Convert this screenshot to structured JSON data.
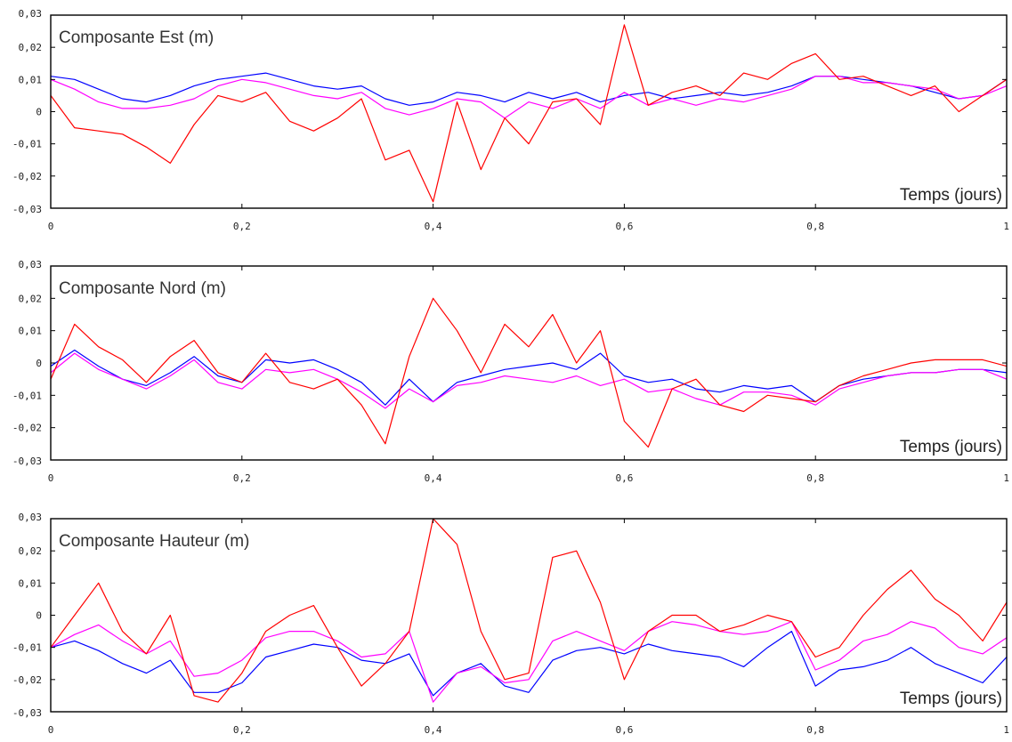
{
  "chart_data": [
    {
      "type": "line",
      "title": "Composante Est (m)",
      "xlabel": "Temps (jours)",
      "ylabel": "",
      "xlim": [
        0,
        1
      ],
      "ylim": [
        -0.03,
        0.03
      ],
      "xticks": [
        "0",
        "0,2",
        "0,4",
        "0,6",
        "0,8",
        "1"
      ],
      "yticks": [
        "0,03",
        "0,02",
        "0,01",
        "0",
        "-0,01",
        "-0,02",
        "-0,03"
      ],
      "grid": false,
      "x": [
        0,
        0.025,
        0.05,
        0.075,
        0.1,
        0.125,
        0.15,
        0.175,
        0.2,
        0.225,
        0.25,
        0.275,
        0.3,
        0.325,
        0.35,
        0.375,
        0.4,
        0.425,
        0.45,
        0.475,
        0.5,
        0.525,
        0.55,
        0.575,
        0.6,
        0.625,
        0.65,
        0.675,
        0.7,
        0.725,
        0.75,
        0.775,
        0.8,
        0.825,
        0.85,
        0.875,
        0.9,
        0.925,
        0.95,
        0.975,
        1
      ],
      "series": [
        {
          "color": "#0000ff",
          "values": [
            0.011,
            0.01,
            0.007,
            0.004,
            0.003,
            0.005,
            0.008,
            0.01,
            0.011,
            0.012,
            0.01,
            0.008,
            0.007,
            0.008,
            0.004,
            0.002,
            0.003,
            0.006,
            0.005,
            0.003,
            0.006,
            0.004,
            0.006,
            0.003,
            0.005,
            0.006,
            0.004,
            0.005,
            0.006,
            0.005,
            0.006,
            0.008,
            0.011,
            0.011,
            0.01,
            0.009,
            0.008,
            0.006,
            0.004,
            0.005,
            0.01
          ]
        },
        {
          "color": "#ff00ff",
          "values": [
            0.01,
            0.007,
            0.003,
            0.001,
            0.001,
            0.002,
            0.004,
            0.008,
            0.01,
            0.009,
            0.007,
            0.005,
            0.004,
            0.006,
            0.001,
            -0.001,
            0.001,
            0.004,
            0.003,
            -0.002,
            0.003,
            0.001,
            0.004,
            0.001,
            0.006,
            0.002,
            0.004,
            0.002,
            0.004,
            0.003,
            0.005,
            0.007,
            0.011,
            0.011,
            0.009,
            0.009,
            0.008,
            0.007,
            0.004,
            0.005,
            0.008
          ]
        },
        {
          "color": "#ff0000",
          "values": [
            0.005,
            -0.005,
            -0.006,
            -0.007,
            -0.011,
            -0.016,
            -0.004,
            0.005,
            0.003,
            0.006,
            -0.003,
            -0.006,
            -0.002,
            0.004,
            -0.015,
            -0.012,
            -0.028,
            0.003,
            -0.018,
            -0.002,
            -0.01,
            0.003,
            0.004,
            -0.004,
            0.027,
            0.002,
            0.006,
            0.008,
            0.005,
            0.012,
            0.01,
            0.015,
            0.018,
            0.01,
            0.011,
            0.008,
            0.005,
            0.008,
            0.0,
            0.005,
            0.01
          ]
        }
      ]
    },
    {
      "type": "line",
      "title": "Composante Nord (m)",
      "xlabel": "Temps (jours)",
      "ylabel": "",
      "xlim": [
        0,
        1
      ],
      "ylim": [
        -0.03,
        0.03
      ],
      "xticks": [
        "0",
        "0,2",
        "0,4",
        "0,6",
        "0,8",
        "1"
      ],
      "yticks": [
        "0,03",
        "0,02",
        "0,01",
        "0",
        "-0,01",
        "-0,02",
        "-0,03"
      ],
      "grid": false,
      "x": [
        0,
        0.025,
        0.05,
        0.075,
        0.1,
        0.125,
        0.15,
        0.175,
        0.2,
        0.225,
        0.25,
        0.275,
        0.3,
        0.325,
        0.35,
        0.375,
        0.4,
        0.425,
        0.45,
        0.475,
        0.5,
        0.525,
        0.55,
        0.575,
        0.6,
        0.625,
        0.65,
        0.675,
        0.7,
        0.725,
        0.75,
        0.775,
        0.8,
        0.825,
        0.85,
        0.875,
        0.9,
        0.925,
        0.95,
        0.975,
        1
      ],
      "series": [
        {
          "color": "#0000ff",
          "values": [
            -0.001,
            0.004,
            -0.001,
            -0.005,
            -0.007,
            -0.003,
            0.002,
            -0.004,
            -0.006,
            0.001,
            0.0,
            0.001,
            -0.002,
            -0.006,
            -0.013,
            -0.005,
            -0.012,
            -0.006,
            -0.004,
            -0.002,
            -0.001,
            0.0,
            -0.002,
            0.003,
            -0.004,
            -0.006,
            -0.005,
            -0.008,
            -0.009,
            -0.007,
            -0.008,
            -0.007,
            -0.012,
            -0.007,
            -0.005,
            -0.004,
            -0.003,
            -0.003,
            -0.002,
            -0.002,
            -0.003
          ]
        },
        {
          "color": "#ff00ff",
          "values": [
            -0.003,
            0.003,
            -0.002,
            -0.005,
            -0.008,
            -0.004,
            0.001,
            -0.006,
            -0.008,
            -0.002,
            -0.003,
            -0.002,
            -0.005,
            -0.009,
            -0.014,
            -0.008,
            -0.012,
            -0.007,
            -0.006,
            -0.004,
            -0.005,
            -0.006,
            -0.004,
            -0.007,
            -0.005,
            -0.009,
            -0.008,
            -0.011,
            -0.013,
            -0.009,
            -0.009,
            -0.01,
            -0.013,
            -0.008,
            -0.006,
            -0.004,
            -0.003,
            -0.003,
            -0.002,
            -0.002,
            -0.005
          ]
        },
        {
          "color": "#ff0000",
          "values": [
            -0.005,
            0.012,
            0.005,
            0.001,
            -0.006,
            0.002,
            0.007,
            -0.003,
            -0.006,
            0.003,
            -0.006,
            -0.008,
            -0.005,
            -0.013,
            -0.025,
            0.002,
            0.02,
            0.01,
            -0.003,
            0.012,
            0.005,
            0.015,
            0.0,
            0.01,
            -0.018,
            -0.026,
            -0.008,
            -0.005,
            -0.013,
            -0.015,
            -0.01,
            -0.011,
            -0.012,
            -0.007,
            -0.004,
            -0.002,
            0.0,
            0.001,
            0.001,
            0.001,
            -0.001
          ]
        }
      ]
    },
    {
      "type": "line",
      "title": "Composante Hauteur (m)",
      "xlabel": "Temps (jours)",
      "ylabel": "",
      "xlim": [
        0,
        1
      ],
      "ylim": [
        -0.03,
        0.03
      ],
      "xticks": [
        "0",
        "0,2",
        "0,4",
        "0,6",
        "0,8",
        "1"
      ],
      "yticks": [
        "0,03",
        "0,02",
        "0,01",
        "0",
        "-0,01",
        "-0,02",
        "-0,03"
      ],
      "grid": false,
      "x": [
        0,
        0.025,
        0.05,
        0.075,
        0.1,
        0.125,
        0.15,
        0.175,
        0.2,
        0.225,
        0.25,
        0.275,
        0.3,
        0.325,
        0.35,
        0.375,
        0.4,
        0.425,
        0.45,
        0.475,
        0.5,
        0.525,
        0.55,
        0.575,
        0.6,
        0.625,
        0.65,
        0.675,
        0.7,
        0.725,
        0.75,
        0.775,
        0.8,
        0.825,
        0.85,
        0.875,
        0.9,
        0.925,
        0.95,
        0.975,
        1
      ],
      "series": [
        {
          "color": "#0000ff",
          "values": [
            -0.01,
            -0.008,
            -0.011,
            -0.015,
            -0.018,
            -0.014,
            -0.024,
            -0.024,
            -0.021,
            -0.013,
            -0.011,
            -0.009,
            -0.01,
            -0.014,
            -0.015,
            -0.012,
            -0.025,
            -0.018,
            -0.015,
            -0.022,
            -0.024,
            -0.014,
            -0.011,
            -0.01,
            -0.012,
            -0.009,
            -0.011,
            -0.012,
            -0.013,
            -0.016,
            -0.01,
            -0.005,
            -0.022,
            -0.017,
            -0.016,
            -0.014,
            -0.01,
            -0.015,
            -0.018,
            -0.021,
            -0.013
          ]
        },
        {
          "color": "#ff00ff",
          "values": [
            -0.01,
            -0.006,
            -0.003,
            -0.008,
            -0.012,
            -0.008,
            -0.019,
            -0.018,
            -0.014,
            -0.007,
            -0.005,
            -0.005,
            -0.008,
            -0.013,
            -0.012,
            -0.005,
            -0.027,
            -0.018,
            -0.016,
            -0.021,
            -0.02,
            -0.008,
            -0.005,
            -0.008,
            -0.011,
            -0.005,
            -0.002,
            -0.003,
            -0.005,
            -0.006,
            -0.005,
            -0.002,
            -0.017,
            -0.014,
            -0.008,
            -0.006,
            -0.002,
            -0.004,
            -0.01,
            -0.012,
            -0.007
          ]
        },
        {
          "color": "#ff0000",
          "values": [
            -0.01,
            0.0,
            0.01,
            -0.005,
            -0.012,
            0.0,
            -0.025,
            -0.027,
            -0.018,
            -0.005,
            0.0,
            0.003,
            -0.01,
            -0.022,
            -0.015,
            -0.005,
            0.03,
            0.022,
            -0.005,
            -0.02,
            -0.018,
            0.018,
            0.02,
            0.004,
            -0.02,
            -0.005,
            0.0,
            0.0,
            -0.005,
            -0.003,
            0.0,
            -0.002,
            -0.013,
            -0.01,
            0.0,
            0.008,
            0.014,
            0.005,
            0.0,
            -0.008,
            0.004
          ]
        }
      ]
    }
  ]
}
